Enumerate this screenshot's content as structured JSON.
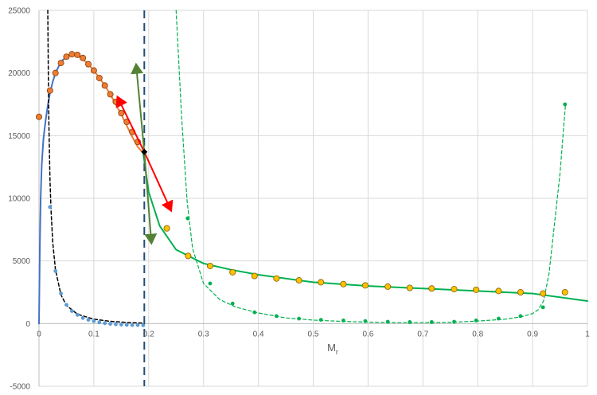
{
  "chart_data": {
    "type": "scatter",
    "title": "",
    "xlabel": "M",
    "xlabel_subscript": "r",
    "ylabel": "",
    "xlim": [
      0,
      1
    ],
    "ylim": [
      -5000,
      25000
    ],
    "x_ticks": [
      0,
      0.1,
      0.2,
      0.3,
      0.4,
      0.5,
      0.6,
      0.7,
      0.8,
      0.9,
      1
    ],
    "x_tick_labels": [
      "0",
      "0.1",
      "0.2",
      "0.3",
      "0.4",
      "0.5",
      "0.6",
      "0.7",
      "0.8",
      "0.9",
      "1"
    ],
    "y_ticks": [
      -5000,
      0,
      5000,
      10000,
      15000,
      20000,
      25000
    ],
    "y_tick_labels": [
      "-5000",
      "0",
      "5000",
      "10000",
      "15000",
      "20000",
      "25000"
    ],
    "grid": true,
    "legend": "none",
    "colors": {
      "blue": "#4472c4",
      "orange": "#ed7d31",
      "yellow": "#ffc000",
      "green": "#00b050",
      "dark_green": "#548235",
      "red": "#ff0000",
      "navy": "#1f4e79",
      "black": "#000000"
    },
    "series": [
      {
        "style": "blue-solid-line",
        "x": [
          0,
          0.0015,
          0.003,
          0.005,
          0.008,
          0.012,
          0.016,
          0.02,
          0.025,
          0.03,
          0.04,
          0.05
        ],
        "y": [
          0,
          6000,
          10000,
          12700,
          14700,
          16200,
          17400,
          18400,
          19300,
          20000,
          20900,
          21300
        ]
      },
      {
        "style": "orange-solid-line",
        "x": [
          0.05,
          0.06,
          0.07,
          0.08,
          0.09,
          0.1,
          0.11,
          0.12,
          0.13,
          0.14,
          0.15,
          0.16,
          0.17,
          0.18,
          0.19
        ],
        "y": [
          21300,
          21500,
          21400,
          21100,
          20700,
          20200,
          19600,
          19000,
          18300,
          17500,
          16700,
          15800,
          14900,
          14100,
          13600
        ]
      },
      {
        "style": "orange-markers",
        "x": [
          0,
          0.02,
          0.03,
          0.04,
          0.05,
          0.06,
          0.07,
          0.08,
          0.09,
          0.1,
          0.11,
          0.12,
          0.13,
          0.14,
          0.15,
          0.16,
          0.17,
          0.18
        ],
        "y": [
          16500,
          18600,
          20000,
          20800,
          21300,
          21500,
          21450,
          21200,
          20700,
          20200,
          19600,
          19000,
          18300,
          17700,
          16800,
          16100,
          15300,
          14500
        ]
      },
      {
        "style": "black-dashed-line",
        "x": [
          0.016,
          0.017,
          0.018,
          0.02,
          0.022,
          0.025,
          0.03,
          0.04,
          0.05,
          0.07,
          0.1,
          0.13,
          0.16,
          0.19
        ],
        "y": [
          25000,
          20000,
          16000,
          11500,
          9000,
          6500,
          4300,
          2300,
          1450,
          750,
          350,
          180,
          90,
          40
        ]
      },
      {
        "style": "blue-dot-markers",
        "x": [
          0.02,
          0.03,
          0.04,
          0.05,
          0.06,
          0.07,
          0.08,
          0.09,
          0.1,
          0.11,
          0.12,
          0.13,
          0.14,
          0.15,
          0.16,
          0.17,
          0.18,
          0.19
        ],
        "y": [
          9300,
          4200,
          2400,
          1500,
          1000,
          700,
          450,
          300,
          200,
          100,
          30,
          -20,
          -50,
          -80,
          -100,
          -120,
          -120,
          -130
        ]
      },
      {
        "style": "green-solid-line",
        "x": [
          0.19,
          0.2,
          0.22,
          0.25,
          0.3,
          0.35,
          0.4,
          0.5,
          0.6,
          0.7,
          0.8,
          0.9,
          1
        ],
        "y": [
          13600,
          10500,
          7800,
          5900,
          4800,
          4300,
          3900,
          3300,
          3000,
          2800,
          2600,
          2400,
          1800
        ]
      },
      {
        "style": "yellow-markers",
        "x": [
          0.233,
          0.272,
          0.312,
          0.353,
          0.393,
          0.433,
          0.474,
          0.514,
          0.555,
          0.595,
          0.636,
          0.676,
          0.716,
          0.757,
          0.797,
          0.838,
          0.878,
          0.919,
          0.959
        ],
        "y": [
          7600,
          5400,
          4600,
          4100,
          3800,
          3600,
          3450,
          3300,
          3150,
          3050,
          2950,
          2850,
          2800,
          2750,
          2700,
          2600,
          2500,
          2400,
          2500
        ]
      },
      {
        "style": "green-dashed-line",
        "x": [
          0.25,
          0.26,
          0.27,
          0.28,
          0.3,
          0.33,
          0.36,
          0.4,
          0.45,
          0.5,
          0.55,
          0.6,
          0.65,
          0.7,
          0.75,
          0.8,
          0.85,
          0.88,
          0.9,
          0.91,
          0.92,
          0.93,
          0.94,
          0.95,
          0.96
        ],
        "y": [
          25000,
          16500,
          9800,
          6000,
          3200,
          1900,
          1300,
          850,
          450,
          280,
          180,
          120,
          80,
          80,
          100,
          200,
          350,
          550,
          800,
          1100,
          1800,
          4000,
          8000,
          12000,
          17500
        ]
      },
      {
        "style": "green-dot-markers",
        "x": [
          0.271,
          0.312,
          0.353,
          0.393,
          0.433,
          0.474,
          0.514,
          0.555,
          0.595,
          0.636,
          0.676,
          0.716,
          0.757,
          0.797,
          0.838,
          0.878,
          0.919,
          0.959
        ],
        "y": [
          8400,
          3200,
          1600,
          900,
          600,
          400,
          300,
          250,
          200,
          150,
          120,
          120,
          150,
          250,
          400,
          600,
          1300,
          17500
        ]
      }
    ],
    "vertical_line": {
      "x": 0.192,
      "style": "navy-long-dashed"
    },
    "black_point": {
      "x": 0.192,
      "y": 13700
    },
    "arrows": [
      {
        "style": "red",
        "from": [
          0.192,
          13700
        ],
        "to": [
          0.143,
          18100
        ]
      },
      {
        "style": "red",
        "from": [
          0.192,
          13700
        ],
        "to": [
          0.241,
          9000
        ]
      },
      {
        "style": "dark-green",
        "from": [
          0.192,
          13700
        ],
        "to": [
          0.177,
          20700
        ]
      },
      {
        "style": "dark-green",
        "from": [
          0.192,
          13700
        ],
        "to": [
          0.205,
          6400
        ]
      }
    ]
  }
}
